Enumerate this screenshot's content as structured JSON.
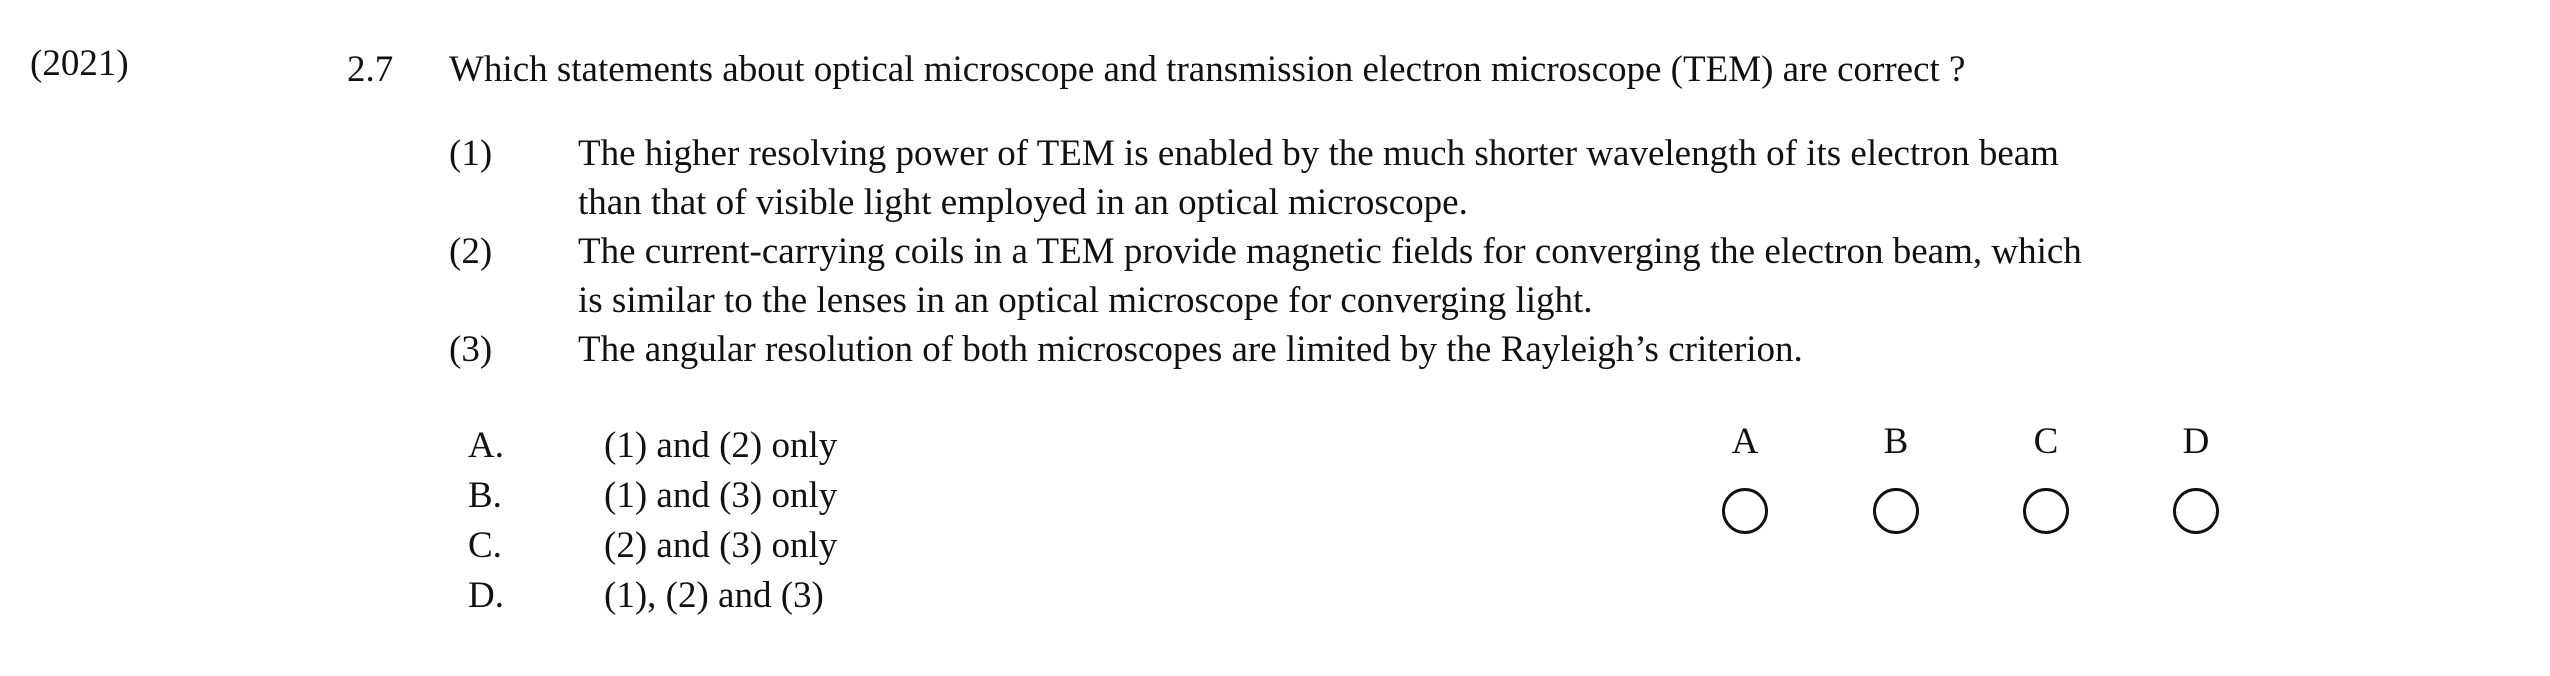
{
  "year": "(2021)",
  "question": {
    "number": "2.7",
    "text": "Which statements about optical microscope and transmission electron microscope (TEM) are correct ?"
  },
  "statements": [
    {
      "num": "(1)",
      "lines": [
        "The higher resolving power of TEM is enabled by the much shorter wavelength of its electron beam",
        "than that of visible light employed in an optical microscope."
      ]
    },
    {
      "num": "(2)",
      "lines": [
        "The current-carrying coils in a TEM provide magnetic fields for converging the electron beam, which",
        "is similar to the lenses in an optical microscope for converging light."
      ]
    },
    {
      "num": "(3)",
      "lines": [
        "The angular resolution of both microscopes are limited by the Rayleigh’s criterion."
      ]
    }
  ],
  "choices": [
    {
      "letter": "A.",
      "text": "(1) and (2) only"
    },
    {
      "letter": "B.",
      "text": "(1) and (3) only"
    },
    {
      "letter": "C.",
      "text": "(2) and (3) only"
    },
    {
      "letter": "D.",
      "text": "(1), (2) and (3)"
    }
  ],
  "answer_bubbles": [
    {
      "label": "A",
      "icon": "empty-circle"
    },
    {
      "label": "B",
      "icon": "empty-circle"
    },
    {
      "label": "C",
      "icon": "empty-circle"
    },
    {
      "label": "D",
      "icon": "empty-circle"
    }
  ]
}
